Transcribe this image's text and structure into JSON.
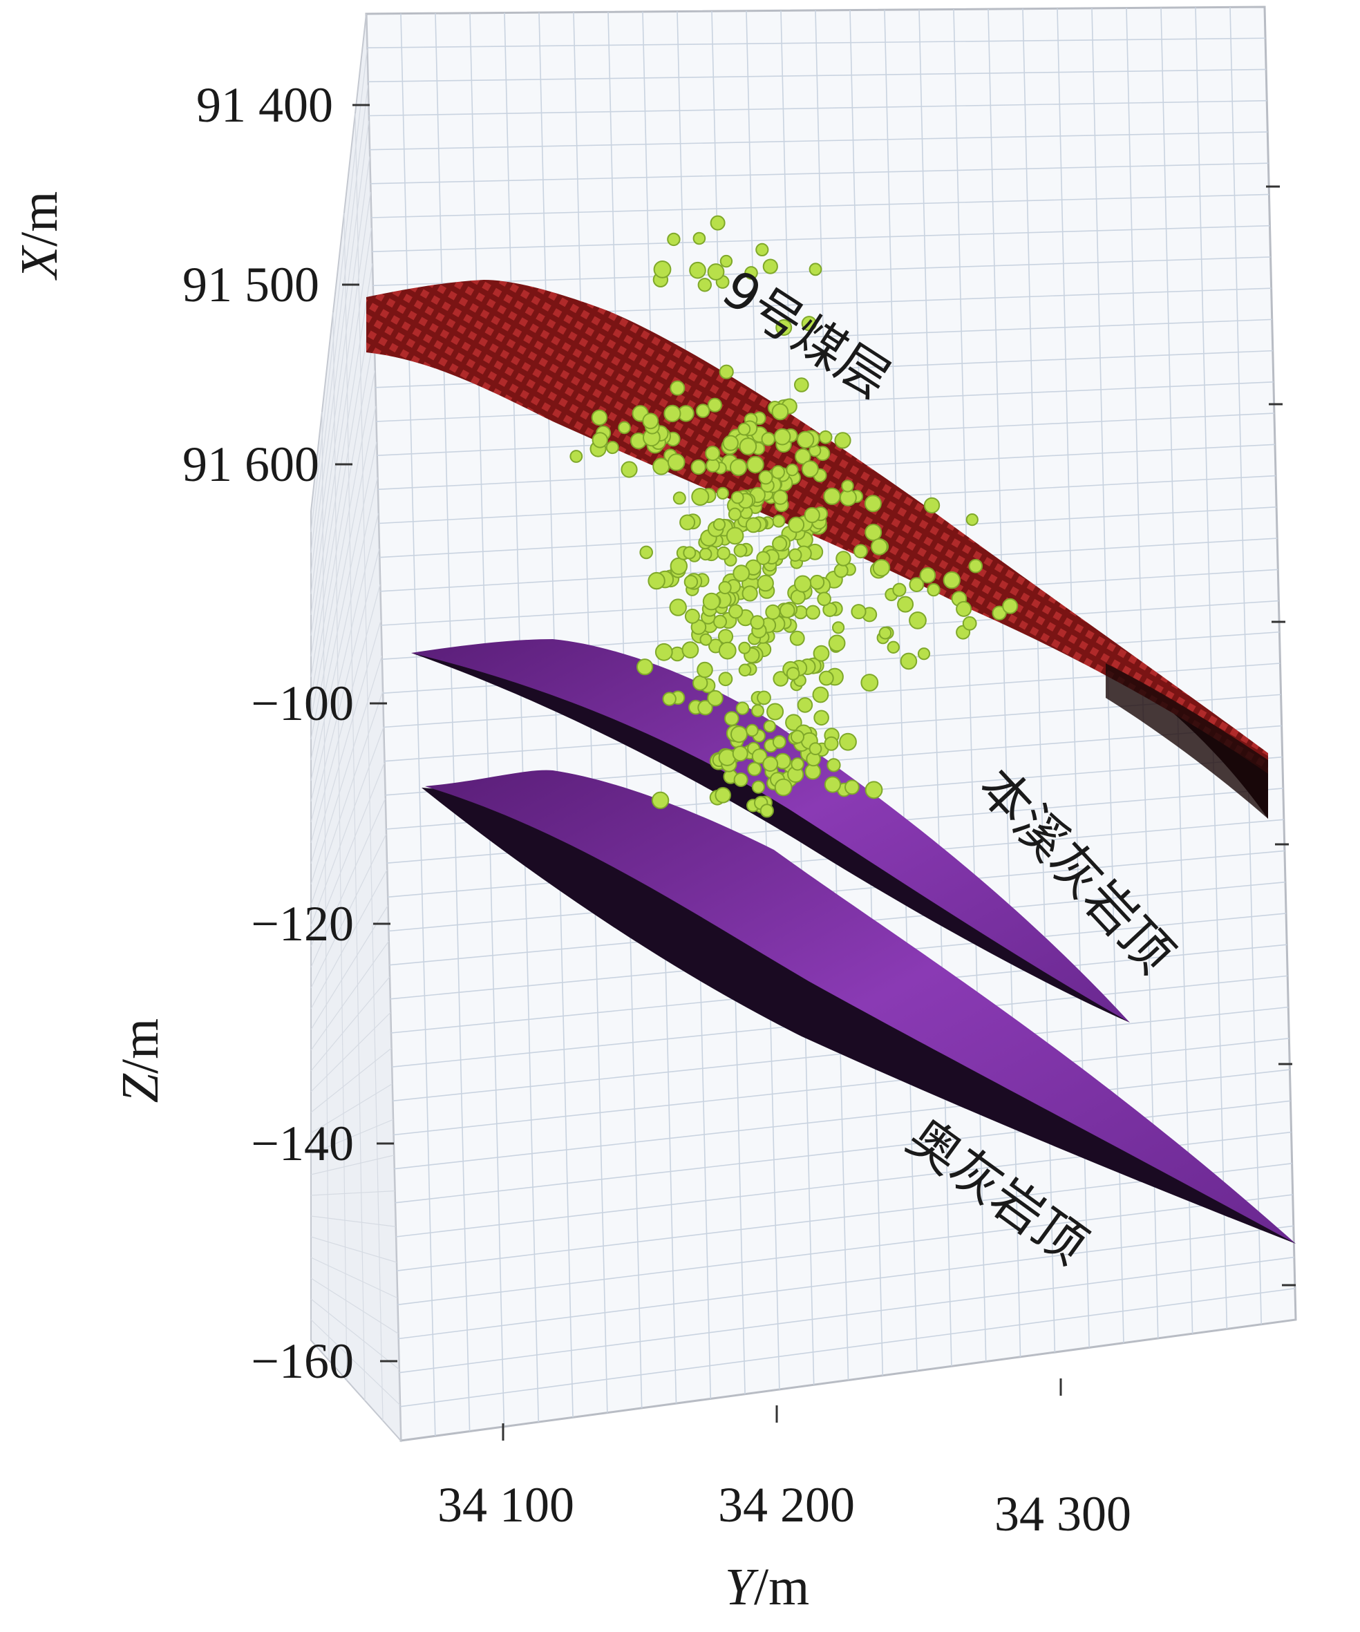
{
  "chart_data": {
    "type": "scatter",
    "view": "3d",
    "axes": {
      "x": {
        "label_var": "X",
        "label_unit": "/m",
        "ticks": [
          "91 400",
          "91 500",
          "91 600"
        ],
        "values": [
          91400,
          91500,
          91600
        ]
      },
      "y": {
        "label_var": "Y",
        "label_unit": "/m",
        "ticks": [
          "34 100",
          "34 200",
          "34 300"
        ],
        "values": [
          34100,
          34200,
          34300
        ]
      },
      "z": {
        "label_var": "Z",
        "label_unit": "/m",
        "ticks": [
          "−100",
          "−120",
          "−140",
          "−160"
        ],
        "values": [
          -100,
          -120,
          -140,
          -160
        ]
      }
    },
    "surfaces": [
      {
        "label": "9号煤层",
        "color": "#8b1a1a",
        "underside_color": "#120810"
      },
      {
        "label": "本溪灰岩顶",
        "color": "#7a2fa0",
        "underside_color": "#1a0a22"
      },
      {
        "label": "奥灰岩顶",
        "color": "#7a2fa0",
        "underside_color": "#1a0a22"
      }
    ],
    "events": {
      "color": "#b8e04a",
      "edge_color": "#7fa82a"
    },
    "grid": true
  }
}
